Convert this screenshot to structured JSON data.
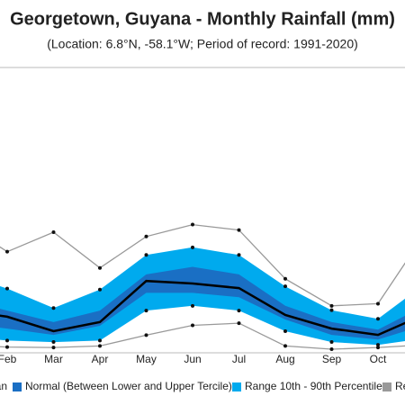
{
  "chart_data": {
    "type": "climate-band",
    "title": "Georgetown, Guyana - Monthly Rainfall (mm)",
    "subtitle": "(Location: 6.8°N, -58.1°W; Period of record: 1991-2020)",
    "categories": [
      null,
      "Feb",
      "Mar",
      "Apr",
      "May",
      "Jun",
      "Jul",
      "Aug",
      "Sep",
      "Oct",
      null
    ],
    "ylim": [
      0,
      1300
    ],
    "series": [
      {
        "name": "Record",
        "color": "#999999",
        "kind": "record",
        "upper": [
          590,
          450,
          540,
          375,
          520,
          575,
          550,
          325,
          200,
          210,
          530
        ],
        "lower": [
          20,
          10,
          8,
          15,
          65,
          110,
          120,
          15,
          0,
          8,
          20
        ]
      },
      {
        "name": "Range 10th - 90th Percentile",
        "color": "#00aaee",
        "kind": "band",
        "upper": [
          350,
          280,
          190,
          275,
          435,
          470,
          435,
          290,
          180,
          140,
          300
        ],
        "lower": [
          60,
          40,
          33,
          40,
          178,
          200,
          178,
          83,
          33,
          20,
          50
        ]
      },
      {
        "name": "Normal (Between Lower and Upper Tercile)",
        "color": "#1a6fc4",
        "kind": "normal",
        "upper": [
          230,
          178,
          125,
          178,
          345,
          380,
          345,
          200,
          125,
          90,
          200
        ],
        "lower": [
          120,
          95,
          66,
          108,
          260,
          260,
          240,
          137,
          66,
          45,
          110
        ]
      },
      {
        "name": "Mean",
        "color": "#000000",
        "kind": "mean",
        "values": [
          180,
          150,
          83,
          125,
          315,
          303,
          282,
          158,
          95,
          66,
          160
        ]
      }
    ]
  }
}
